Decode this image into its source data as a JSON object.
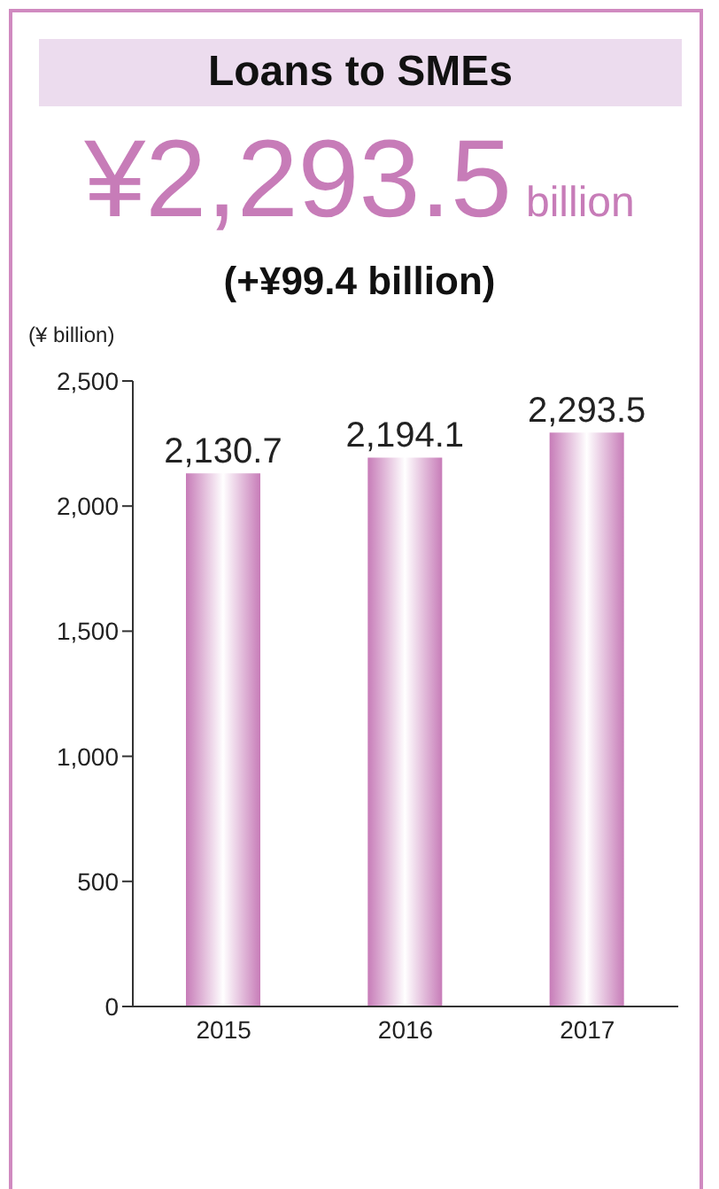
{
  "chart_data": {
    "type": "bar",
    "title": "Loans to SMEs",
    "subtitle": "¥2,293.5",
    "annotations": [
      "billion",
      "(+¥99.4 billion)"
    ],
    "ylabel": "(¥ billion)",
    "categories": [
      "2015",
      "2016",
      "2017"
    ],
    "values": [
      2130.7,
      2194.1,
      2293.5
    ],
    "value_labels": [
      "2,130.7",
      "2,194.1",
      "2,293.5"
    ],
    "color": "#c77cb8",
    "ylim": [
      0,
      2500
    ],
    "yticks": [
      0,
      500,
      {
        "value": 1000,
        "label": "1,000"
      },
      {
        "value": 1500,
        "label": "1,500"
      },
      {
        "value": 2000,
        "label": "2,000"
      },
      {
        "value": 2500,
        "label": "2,500"
      }
    ],
    "grid": false
  }
}
